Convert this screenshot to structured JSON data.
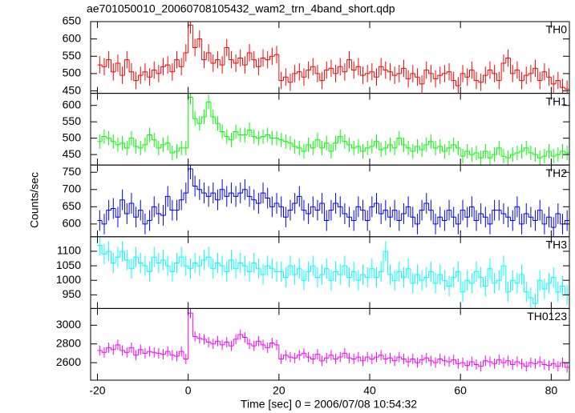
{
  "chart_data": {
    "type": "step",
    "title": "ae701050010_20060708105432_wam2_trn_4band_short.qdp",
    "xlabel": "Time [sec] 0 = 2006/07/08 10:54:32",
    "ylabel": "Counts/sec",
    "xlim": [
      -21.5,
      84
    ],
    "xticks": [
      -20,
      0,
      20,
      40,
      60,
      80
    ],
    "x": [
      -19.5,
      -18.5,
      -17.5,
      -16.5,
      -15.5,
      -14.5,
      -13.5,
      -12.5,
      -11.5,
      -10.5,
      -9.5,
      -8.5,
      -7.5,
      -6.5,
      -5.5,
      -4.5,
      -3.5,
      -2.5,
      -1.5,
      -0.5,
      0.5,
      1.5,
      2.5,
      3.5,
      4.5,
      5.5,
      6.5,
      7.5,
      8.5,
      9.5,
      10.5,
      11.5,
      12.5,
      13.5,
      14.5,
      15.5,
      16.5,
      17.5,
      18.5,
      19.5,
      20.5,
      21.5,
      22.5,
      23.5,
      24.5,
      25.5,
      26.5,
      27.5,
      28.5,
      29.5,
      30.5,
      31.5,
      32.5,
      33.5,
      34.5,
      35.5,
      36.5,
      37.5,
      38.5,
      39.5,
      40.5,
      41.5,
      42.5,
      43.5,
      44.5,
      45.5,
      46.5,
      47.5,
      48.5,
      49.5,
      50.5,
      51.5,
      52.5,
      53.5,
      54.5,
      55.5,
      56.5,
      57.5,
      58.5,
      59.5,
      60.5,
      61.5,
      62.5,
      63.5,
      64.5,
      65.5,
      66.5,
      67.5,
      68.5,
      69.5,
      70.5,
      71.5,
      72.5,
      73.5,
      74.5,
      75.5,
      76.5,
      77.5,
      78.5,
      79.5,
      80.5,
      81.5,
      82.5,
      83.5
    ],
    "panels": [
      {
        "name": "TH0",
        "color": "#ff0000",
        "error": 25,
        "ylim": [
          443,
          650
        ],
        "yticks": [
          450,
          500,
          550,
          600,
          650
        ],
        "values": [
          525,
          520,
          540,
          505,
          530,
          495,
          540,
          505,
          480,
          495,
          505,
          490,
          510,
          500,
          520,
          525,
          505,
          540,
          520,
          560,
          640,
          575,
          600,
          540,
          560,
          530,
          540,
          525,
          575,
          540,
          530,
          545,
          525,
          560,
          540,
          520,
          545,
          540,
          550,
          555,
          480,
          490,
          475,
          500,
          505,
          490,
          510,
          520,
          500,
          480,
          510,
          515,
          500,
          520,
          505,
          540,
          510,
          520,
          495,
          500,
          505,
          490,
          520,
          510,
          505,
          495,
          500,
          515,
          485,
          500,
          490,
          470,
          510,
          500,
          485,
          495,
          500,
          505,
          480,
          465,
          500,
          490,
          510,
          480,
          475,
          495,
          510,
          500,
          480,
          530,
          545,
          500,
          510,
          480,
          495,
          500,
          515,
          480,
          505,
          490,
          470,
          480,
          460,
          455
        ]
      },
      {
        "name": "TH1",
        "color": "#00ff00",
        "error": 22,
        "ylim": [
          418,
          637
        ],
        "yticks": [
          450,
          500,
          550,
          600
        ],
        "values": [
          490,
          505,
          500,
          490,
          480,
          485,
          470,
          500,
          475,
          470,
          480,
          510,
          495,
          470,
          480,
          485,
          455,
          460,
          470,
          470,
          625,
          560,
          545,
          565,
          610,
          565,
          545,
          520,
          505,
          495,
          520,
          510,
          510,
          525,
          505,
          500,
          505,
          510,
          500,
          500,
          495,
          490,
          485,
          475,
          470,
          460,
          480,
          470,
          495,
          470,
          485,
          460,
          485,
          505,
          490,
          480,
          470,
          475,
          460,
          470,
          475,
          490,
          465,
          470,
          480,
          470,
          500,
          480,
          470,
          460,
          475,
          465,
          480,
          490,
          470,
          475,
          460,
          470,
          480,
          470,
          445,
          460,
          450,
          455,
          440,
          460,
          440,
          450,
          470,
          445,
          440,
          450,
          455,
          460,
          470,
          455,
          450,
          440,
          445,
          460,
          445,
          450,
          460,
          455
        ]
      },
      {
        "name": "TH2",
        "color": "#0000ff",
        "error": 30,
        "ylim": [
          563,
          771
        ],
        "yticks": [
          600,
          650,
          700,
          750
        ],
        "values": [
          610,
          600,
          640,
          645,
          620,
          670,
          630,
          660,
          620,
          640,
          600,
          610,
          650,
          630,
          625,
          680,
          640,
          640,
          670,
          690,
          760,
          710,
          700,
          690,
          680,
          690,
          670,
          700,
          680,
          690,
          680,
          690,
          700,
          680,
          670,
          660,
          690,
          675,
          650,
          660,
          650,
          620,
          640,
          660,
          680,
          640,
          630,
          650,
          640,
          660,
          610,
          640,
          660,
          650,
          630,
          620,
          610,
          650,
          640,
          610,
          650,
          660,
          630,
          640,
          620,
          640,
          610,
          630,
          650,
          620,
          600,
          640,
          660,
          640,
          600,
          620,
          610,
          640,
          620,
          600,
          640,
          620,
          650,
          610,
          630,
          620,
          600,
          640,
          640,
          630,
          620,
          610,
          650,
          600,
          630,
          620,
          610,
          640,
          600,
          620,
          590,
          630,
          600,
          610
        ]
      },
      {
        "name": "TH3",
        "color": "#00ffff",
        "error": 35,
        "ylim": [
          903,
          1150
        ],
        "yticks": [
          950,
          1000,
          1050,
          1100
        ],
        "values": [
          1120,
          1090,
          1100,
          1060,
          1080,
          1100,
          1070,
          1040,
          1080,
          1060,
          1050,
          1030,
          1080,
          1060,
          1070,
          1050,
          1030,
          1060,
          1080,
          1050,
          1040,
          1060,
          1050,
          1070,
          1080,
          1040,
          1060,
          1050,
          1030,
          1070,
          1040,
          1060,
          1050,
          1030,
          1060,
          1040,
          1020,
          1050,
          1040,
          1030,
          1030,
          1010,
          1050,
          1020,
          1040,
          1000,
          1030,
          1050,
          1010,
          1020,
          1040,
          1000,
          1030,
          1020,
          1050,
          1010,
          1030,
          1000,
          1020,
          1010,
          1040,
          1010,
          1030,
          1100,
          1020,
          1000,
          1030,
          1010,
          1040,
          990,
          1020,
          1000,
          1010,
          1030,
          990,
          1020,
          1000,
          980,
          1010,
          1030,
          960,
          1000,
          990,
          1030,
          1010,
          980,
          1040,
          990,
          1000,
          1050,
          960,
          1000,
          990,
          1020,
          960,
          940,
          920,
          1000,
          970,
          990,
          1010,
          960,
          980,
          950
        ]
      },
      {
        "name": "TH0123",
        "color": "#ff00ff",
        "error": 55,
        "ylim": [
          2413,
          3179
        ],
        "yticks": [
          2600,
          2800,
          3000
        ],
        "values": [
          2730,
          2710,
          2760,
          2740,
          2790,
          2730,
          2710,
          2760,
          2680,
          2740,
          2700,
          2720,
          2710,
          2700,
          2690,
          2720,
          2680,
          2670,
          2720,
          2640,
          3130,
          2880,
          2860,
          2850,
          2820,
          2800,
          2830,
          2790,
          2820,
          2780,
          2850,
          2900,
          2870,
          2800,
          2780,
          2830,
          2790,
          2760,
          2810,
          2790,
          2640,
          2680,
          2660,
          2650,
          2680,
          2700,
          2660,
          2640,
          2690,
          2620,
          2650,
          2680,
          2640,
          2660,
          2700,
          2650,
          2640,
          2660,
          2620,
          2660,
          2640,
          2660,
          2680,
          2640,
          2650,
          2620,
          2660,
          2640,
          2610,
          2640,
          2600,
          2630,
          2650,
          2620,
          2600,
          2640,
          2620,
          2610,
          2630,
          2590,
          2600,
          2570,
          2610,
          2580,
          2560,
          2620,
          2610,
          2590,
          2630,
          2600,
          2620,
          2580,
          2610,
          2590,
          2560,
          2600,
          2590,
          2610,
          2580,
          2570,
          2590,
          2560,
          2600,
          2550
        ]
      }
    ]
  }
}
